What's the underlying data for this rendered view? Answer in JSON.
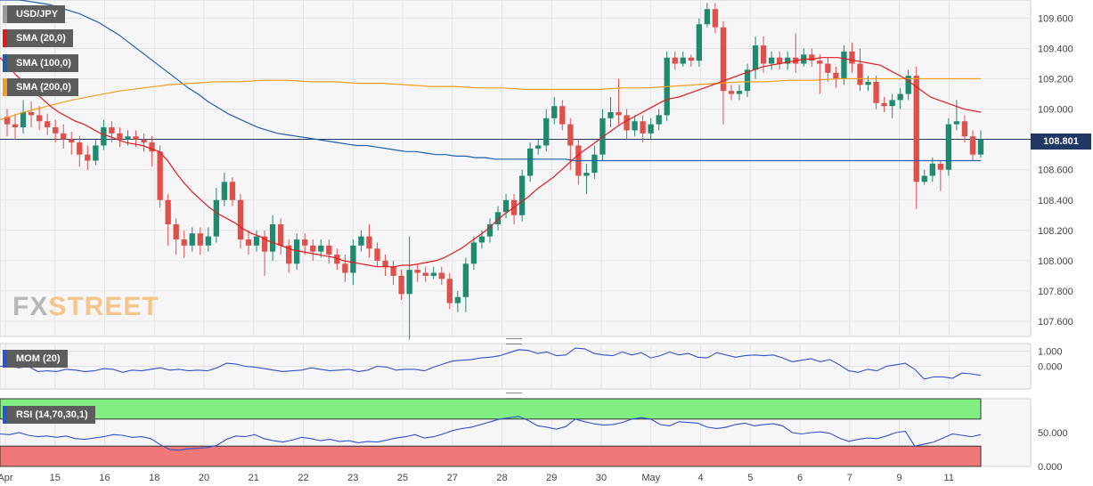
{
  "tags": {
    "symbol": "USD/JPY",
    "sma20": "SMA (20,0)",
    "sma100": "SMA (100,0)",
    "sma200": "SMA (200,0)",
    "mom": "MOM (20)",
    "rsi": "RSI (14,70,30,1)"
  },
  "colors": {
    "symbol": "#7a7a7a",
    "sma20": "#e31a1c",
    "sma100": "#1f5fae",
    "sma200": "#f0a020",
    "mom": "#2f53c9",
    "rsi": "#2f53c9",
    "up": "#1f8a70",
    "down": "#e0504a",
    "rsi_overbought": "#80ee80",
    "rsi_oversold": "#f07878",
    "price_line": "#1f3864"
  },
  "current_price": "108.801",
  "watermark": {
    "fx": "FX",
    "street": "STREET"
  },
  "chart_data": [
    {
      "type": "candlestick",
      "title": "USD/JPY",
      "x_labels": [
        "Apr",
        "15",
        "16",
        "18",
        "20",
        "21",
        "22",
        "23",
        "25",
        "27",
        "28",
        "29",
        "30",
        "May",
        "4",
        "5",
        "6",
        "7",
        "9",
        "11"
      ],
      "y_ticks": [
        "107.600",
        "107.800",
        "108.000",
        "108.200",
        "108.400",
        "108.600",
        "108.800",
        "109.000",
        "109.200",
        "109.400",
        "109.600"
      ],
      "ylim": [
        107.5,
        109.72
      ],
      "current_price": 108.801,
      "candles": [
        [
          108.95,
          108.9,
          109.0,
          108.82
        ],
        [
          108.9,
          108.88,
          108.97,
          108.8
        ],
        [
          108.88,
          108.98,
          109.06,
          108.84
        ],
        [
          108.98,
          108.96,
          109.05,
          108.88
        ],
        [
          108.96,
          108.92,
          109.02,
          108.86
        ],
        [
          108.92,
          108.88,
          108.97,
          108.83
        ],
        [
          108.88,
          108.84,
          108.93,
          108.78
        ],
        [
          108.84,
          108.8,
          108.9,
          108.74
        ],
        [
          108.8,
          108.78,
          108.85,
          108.7
        ],
        [
          108.78,
          108.7,
          108.82,
          108.62
        ],
        [
          108.7,
          108.66,
          108.76,
          108.6
        ],
        [
          108.66,
          108.76,
          108.8,
          108.63
        ],
        [
          108.76,
          108.88,
          108.93,
          108.73
        ],
        [
          108.88,
          108.84,
          108.92,
          108.78
        ],
        [
          108.84,
          108.8,
          108.88,
          108.75
        ],
        [
          108.8,
          108.82,
          108.86,
          108.76
        ],
        [
          108.82,
          108.8,
          108.86,
          108.75
        ],
        [
          108.8,
          108.78,
          108.84,
          108.72
        ],
        [
          108.78,
          108.72,
          108.82,
          108.62
        ],
        [
          108.72,
          108.4,
          108.76,
          108.35
        ],
        [
          108.4,
          108.24,
          108.44,
          108.1
        ],
        [
          108.24,
          108.14,
          108.28,
          108.04
        ],
        [
          108.14,
          108.1,
          108.2,
          108.02
        ],
        [
          108.1,
          108.18,
          108.22,
          108.06
        ],
        [
          108.18,
          108.1,
          108.22,
          108.04
        ],
        [
          108.1,
          108.16,
          108.22,
          108.06
        ],
        [
          108.16,
          108.4,
          108.48,
          108.12
        ],
        [
          108.4,
          108.52,
          108.58,
          108.36
        ],
        [
          108.52,
          108.4,
          108.55,
          108.36
        ],
        [
          108.4,
          108.14,
          108.44,
          108.08
        ],
        [
          108.14,
          108.1,
          108.2,
          108.04
        ],
        [
          108.1,
          108.16,
          108.2,
          108.06
        ],
        [
          108.16,
          108.06,
          108.2,
          107.9
        ],
        [
          108.06,
          108.24,
          108.3,
          108.0
        ],
        [
          108.24,
          108.1,
          108.28,
          108.04
        ],
        [
          108.1,
          107.98,
          108.14,
          107.92
        ],
        [
          107.98,
          108.14,
          108.18,
          107.94
        ],
        [
          108.14,
          108.1,
          108.18,
          108.04
        ],
        [
          108.1,
          108.06,
          108.14,
          108.0
        ],
        [
          108.06,
          108.1,
          108.14,
          108.02
        ],
        [
          108.1,
          108.04,
          108.14,
          107.98
        ],
        [
          108.04,
          107.98,
          108.08,
          107.94
        ],
        [
          107.98,
          107.92,
          108.04,
          107.86
        ],
        [
          107.92,
          108.1,
          108.14,
          107.84
        ],
        [
          108.1,
          108.16,
          108.2,
          108.06
        ],
        [
          108.16,
          108.08,
          108.24,
          108.02
        ],
        [
          108.08,
          108.0,
          108.12,
          107.96
        ],
        [
          108.0,
          107.96,
          108.04,
          107.9
        ],
        [
          107.96,
          107.9,
          108.0,
          107.84
        ],
        [
          107.9,
          107.78,
          107.94,
          107.74
        ],
        [
          107.78,
          107.94,
          108.16,
          107.48
        ],
        [
          107.94,
          107.92,
          107.98,
          107.86
        ],
        [
          107.92,
          107.9,
          107.96,
          107.86
        ],
        [
          107.9,
          107.92,
          107.96,
          107.88
        ],
        [
          107.92,
          107.88,
          107.96,
          107.84
        ],
        [
          107.88,
          107.72,
          107.92,
          107.68
        ],
        [
          107.72,
          107.76,
          107.8,
          107.66
        ],
        [
          107.76,
          107.98,
          108.02,
          107.66
        ],
        [
          107.98,
          108.12,
          108.16,
          107.94
        ],
        [
          108.12,
          108.16,
          108.2,
          108.08
        ],
        [
          108.16,
          108.24,
          108.28,
          108.12
        ],
        [
          108.24,
          108.32,
          108.36,
          108.2
        ],
        [
          108.32,
          108.4,
          108.44,
          108.28
        ],
        [
          108.4,
          108.3,
          108.44,
          108.24
        ],
        [
          108.3,
          108.56,
          108.6,
          108.26
        ],
        [
          108.56,
          108.74,
          108.78,
          108.52
        ],
        [
          108.74,
          108.76,
          108.8,
          108.7
        ],
        [
          108.76,
          108.94,
          109.0,
          108.72
        ],
        [
          108.94,
          109.02,
          109.08,
          108.9
        ],
        [
          109.02,
          108.9,
          109.06,
          108.86
        ],
        [
          108.9,
          108.76,
          108.94,
          108.6
        ],
        [
          108.76,
          108.56,
          108.8,
          108.5
        ],
        [
          108.56,
          108.58,
          108.64,
          108.44
        ],
        [
          108.58,
          108.7,
          108.76,
          108.54
        ],
        [
          108.7,
          108.94,
          109.0,
          108.66
        ],
        [
          108.94,
          108.98,
          109.08,
          108.88
        ],
        [
          108.98,
          108.96,
          109.2,
          108.9
        ],
        [
          108.96,
          108.86,
          109.0,
          108.8
        ],
        [
          108.86,
          108.92,
          108.96,
          108.82
        ],
        [
          108.92,
          108.84,
          108.96,
          108.78
        ],
        [
          108.84,
          108.9,
          108.94,
          108.8
        ],
        [
          108.9,
          108.96,
          109.0,
          108.86
        ],
        [
          108.96,
          109.34,
          109.38,
          108.92
        ],
        [
          109.34,
          109.3,
          109.38,
          109.26
        ],
        [
          109.3,
          109.34,
          109.38,
          109.28
        ],
        [
          109.34,
          109.32,
          109.36,
          109.28
        ],
        [
          109.32,
          109.56,
          109.6,
          109.28
        ],
        [
          109.56,
          109.66,
          109.7,
          109.54
        ],
        [
          109.66,
          109.54,
          109.7,
          109.5
        ],
        [
          109.54,
          109.12,
          109.58,
          108.9
        ],
        [
          109.12,
          109.1,
          109.16,
          109.06
        ],
        [
          109.1,
          109.12,
          109.16,
          109.06
        ],
        [
          109.12,
          109.26,
          109.3,
          109.08
        ],
        [
          109.26,
          109.42,
          109.48,
          109.2
        ],
        [
          109.42,
          109.3,
          109.48,
          109.24
        ],
        [
          109.3,
          109.34,
          109.38,
          109.26
        ],
        [
          109.34,
          109.3,
          109.38,
          109.26
        ],
        [
          109.3,
          109.34,
          109.38,
          109.26
        ],
        [
          109.34,
          109.3,
          109.5,
          109.24
        ],
        [
          109.3,
          109.36,
          109.4,
          109.28
        ],
        [
          109.36,
          109.32,
          109.4,
          109.28
        ],
        [
          109.32,
          109.3,
          109.36,
          109.1
        ],
        [
          109.3,
          109.24,
          109.34,
          109.18
        ],
        [
          109.24,
          109.2,
          109.28,
          109.14
        ],
        [
          109.2,
          109.38,
          109.42,
          109.16
        ],
        [
          109.38,
          109.3,
          109.44,
          109.24
        ],
        [
          109.3,
          109.16,
          109.4,
          109.12
        ],
        [
          109.16,
          109.18,
          109.22,
          109.12
        ],
        [
          109.18,
          109.04,
          109.22,
          109.0
        ],
        [
          109.04,
          109.02,
          109.08,
          108.98
        ],
        [
          109.02,
          109.06,
          109.1,
          108.94
        ],
        [
          109.06,
          109.1,
          109.14,
          109.0
        ],
        [
          109.1,
          109.22,
          109.26,
          109.06
        ],
        [
          109.22,
          108.52,
          109.28,
          108.34
        ],
        [
          108.52,
          108.56,
          108.6,
          108.5
        ],
        [
          108.56,
          108.64,
          108.68,
          108.52
        ],
        [
          108.64,
          108.6,
          108.66,
          108.46
        ],
        [
          108.6,
          108.9,
          108.94,
          108.56
        ],
        [
          108.9,
          108.92,
          109.06,
          108.86
        ],
        [
          108.92,
          108.82,
          108.96,
          108.78
        ],
        [
          108.82,
          108.7,
          108.86,
          108.66
        ],
        [
          108.7,
          108.8,
          108.86,
          108.68
        ]
      ],
      "sma20": [
        109.34,
        109.28,
        109.22,
        109.17,
        109.12,
        109.07,
        109.02,
        108.98,
        108.95,
        108.92,
        108.9,
        108.87,
        108.84,
        108.82,
        108.8,
        108.78,
        108.77,
        108.76,
        108.74,
        108.72,
        108.66,
        108.58,
        108.51,
        108.45,
        108.4,
        108.35,
        108.31,
        108.28,
        108.25,
        108.21,
        108.18,
        108.16,
        108.13,
        108.11,
        108.09,
        108.07,
        108.06,
        108.05,
        108.04,
        108.03,
        108.02,
        108.0,
        107.99,
        107.98,
        107.97,
        107.96,
        107.96,
        107.96,
        107.97,
        107.97,
        107.98,
        107.99,
        108.0,
        108.02,
        108.05,
        108.08,
        108.12,
        108.16,
        108.2,
        108.25,
        108.3,
        108.34,
        108.38,
        108.42,
        108.47,
        108.51,
        108.55,
        108.6,
        108.65,
        108.7,
        108.74,
        108.78,
        108.82,
        108.86,
        108.9,
        108.93,
        108.96,
        108.99,
        109.02,
        109.05,
        109.07,
        109.08,
        109.1,
        109.12,
        109.14,
        109.16,
        109.18,
        109.2,
        109.22,
        109.24,
        109.26,
        109.28,
        109.29,
        109.3,
        109.31,
        109.32,
        109.33,
        109.33,
        109.34,
        109.34,
        109.34,
        109.33,
        109.32,
        109.31,
        109.3,
        109.29,
        109.26,
        109.23,
        109.2,
        109.16,
        109.12,
        109.08,
        109.06,
        109.04,
        109.02,
        109.0,
        108.99,
        108.98
      ],
      "sma100": [
        109.72,
        109.72,
        109.72,
        109.71,
        109.7,
        109.69,
        109.67,
        109.65,
        109.63,
        109.6,
        109.57,
        109.53,
        109.49,
        109.44,
        109.39,
        109.34,
        109.29,
        109.24,
        109.19,
        109.14,
        109.1,
        109.05,
        109.01,
        108.97,
        108.94,
        108.91,
        108.88,
        108.86,
        108.84,
        108.83,
        108.82,
        108.81,
        108.8,
        108.79,
        108.78,
        108.77,
        108.76,
        108.76,
        108.75,
        108.74,
        108.73,
        108.72,
        108.72,
        108.71,
        108.7,
        108.7,
        108.69,
        108.69,
        108.68,
        108.68,
        108.67,
        108.67,
        108.67,
        108.67,
        108.67,
        108.67,
        108.67,
        108.67,
        108.66,
        108.66,
        108.66,
        108.66,
        108.66,
        108.66,
        108.66,
        108.66,
        108.66,
        108.66,
        108.66,
        108.66,
        108.66,
        108.66,
        108.66,
        108.66,
        108.66,
        108.66,
        108.66,
        108.66,
        108.66,
        108.66,
        108.66,
        108.66,
        108.66,
        108.66,
        108.66,
        108.66,
        108.66,
        108.66,
        108.66,
        108.66,
        108.66,
        108.66,
        108.66,
        108.66,
        108.66,
        108.66,
        108.66,
        108.66,
        108.66,
        108.66
      ],
      "sma200": [
        108.93,
        108.98,
        109.02,
        109.06,
        109.09,
        109.12,
        109.14,
        109.16,
        109.17,
        109.18,
        109.18,
        109.19,
        109.19,
        109.18,
        109.18,
        109.17,
        109.17,
        109.16,
        109.15,
        109.15,
        109.14,
        109.14,
        109.13,
        109.13,
        109.13,
        109.13,
        109.14,
        109.14,
        109.15,
        109.16,
        109.17,
        109.18,
        109.18,
        109.19,
        109.19,
        109.2,
        109.2,
        109.2,
        109.2,
        109.2,
        109.2,
        109.2
      ],
      "mom": [
        0.0,
        0.0,
        -0.1,
        0.0,
        -0.35,
        -0.3,
        -0.35,
        -0.2,
        -0.25,
        -0.35,
        -0.3,
        -0.15,
        -0.2,
        -0.4,
        -0.25,
        -0.3,
        -0.2,
        -0.1,
        -0.25,
        -0.2,
        -0.3,
        -0.25,
        -0.3,
        -0.1,
        0.2,
        0.15,
        0.0,
        -0.05,
        -0.15,
        -0.25,
        -0.35,
        -0.3,
        -0.25,
        -0.1,
        -0.2,
        -0.3,
        -0.25,
        -0.2,
        -0.35,
        -0.25,
        0.0,
        -0.05,
        -0.25,
        -0.2,
        -0.2,
        -0.3,
        -0.05,
        0.15,
        0.35,
        0.4,
        0.45,
        0.55,
        0.6,
        0.7,
        0.9,
        1.1,
        1.05,
        0.85,
        0.95,
        0.7,
        0.75,
        1.2,
        1.15,
        0.85,
        0.75,
        0.7,
        0.95,
        0.75,
        0.9,
        0.55,
        0.7,
        0.95,
        0.75,
        0.85,
        0.6,
        0.55,
        0.9,
        0.75,
        0.6,
        0.7,
        0.75,
        0.7,
        0.75,
        0.55,
        0.3,
        0.4,
        0.5,
        0.3,
        0.45,
        0.1,
        -0.3,
        -0.4,
        -0.2,
        -0.3,
        0.0,
        0.1,
        0.2,
        -0.2,
        -0.85,
        -0.7,
        -0.7,
        -0.8,
        -0.45,
        -0.5,
        -0.6
      ],
      "rsi": [
        48,
        47,
        50,
        46,
        44,
        45,
        43,
        45,
        41,
        40,
        42,
        44,
        47,
        46,
        43,
        44,
        41,
        32,
        25,
        24,
        26,
        27,
        28,
        31,
        40,
        45,
        44,
        47,
        41,
        38,
        36,
        39,
        43,
        41,
        38,
        40,
        37,
        38,
        35,
        37,
        36,
        39,
        42,
        44,
        47,
        42,
        44,
        48,
        53,
        56,
        58,
        62,
        66,
        70,
        72,
        74,
        68,
        60,
        58,
        55,
        59,
        70,
        66,
        63,
        61,
        62,
        65,
        70,
        72,
        70,
        62,
        60,
        66,
        65,
        64,
        58,
        56,
        58,
        62,
        64,
        60,
        62,
        63,
        60,
        50,
        48,
        50,
        51,
        49,
        42,
        37,
        40,
        42,
        41,
        45,
        50,
        52,
        30,
        33,
        36,
        42,
        48,
        46,
        44,
        47
      ],
      "mom_ticks": [
        "1.000",
        "0.000"
      ],
      "rsi_ticks": [
        "50.000",
        "0.000"
      ],
      "rsi_levels": [
        70,
        30
      ]
    }
  ]
}
